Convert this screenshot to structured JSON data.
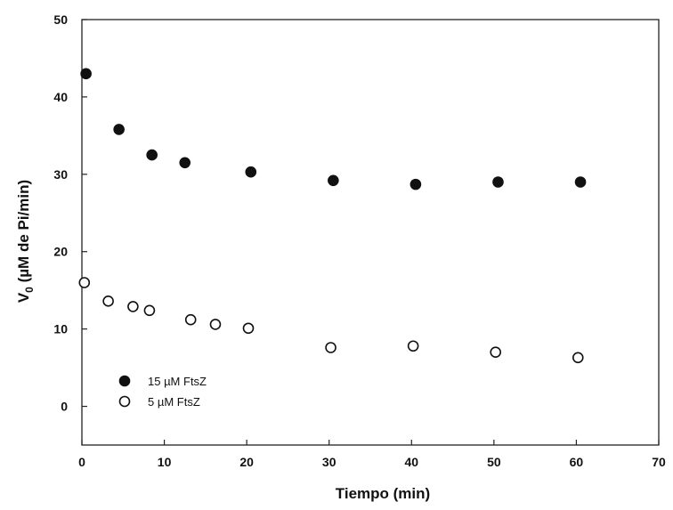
{
  "chart_data": {
    "type": "scatter",
    "xlabel": "Tiempo (min)",
    "ylabel_main": "V",
    "ylabel_sub": "0",
    "ylabel_rest": " (µM de Pi/min)",
    "xlim": [
      0,
      70
    ],
    "ylim": [
      -5,
      50
    ],
    "xticks": [
      0,
      10,
      20,
      30,
      40,
      50,
      60,
      70
    ],
    "yticks": [
      0,
      10,
      20,
      30,
      40,
      50
    ],
    "grid": false,
    "legend_position": "bottom-left",
    "series": [
      {
        "name": "15 µM FtsZ",
        "marker": "filled-circle",
        "color": "#111111",
        "x": [
          0.5,
          4.5,
          8.5,
          12.5,
          20.5,
          30.5,
          40.5,
          50.5,
          60.5
        ],
        "y": [
          43,
          35.8,
          32.5,
          31.5,
          30.3,
          29.2,
          28.7,
          29.0,
          29.0
        ]
      },
      {
        "name": "5 µM FtsZ",
        "marker": "open-circle",
        "color": "#111111",
        "x": [
          0.3,
          3.2,
          6.2,
          8.2,
          13.2,
          16.2,
          20.2,
          30.2,
          40.2,
          50.2,
          60.2
        ],
        "y": [
          16.0,
          13.6,
          12.9,
          12.4,
          11.2,
          10.6,
          10.1,
          7.6,
          7.8,
          7.0,
          6.3
        ]
      }
    ]
  }
}
